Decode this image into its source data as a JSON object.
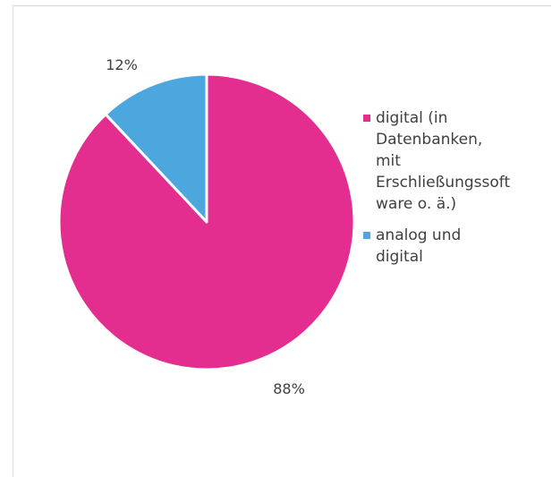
{
  "chart_data": {
    "type": "pie",
    "title": "",
    "slices": [
      {
        "label": "digital (in Datenbanken, mit Erschließungssoftware o. ä.)",
        "legend_text": "digital (in\nDatenbanken,\nmit\nErschließungssoft\nware o. ä.)",
        "value": 88,
        "display": "88%",
        "color": "#E32E90"
      },
      {
        "label": "analog und digital",
        "legend_text": "analog und\ndigital",
        "value": 12,
        "display": "12%",
        "color": "#4BA7DD"
      }
    ],
    "legend_position": "right",
    "start_angle": "12 o'clock",
    "direction": "clockwise"
  }
}
